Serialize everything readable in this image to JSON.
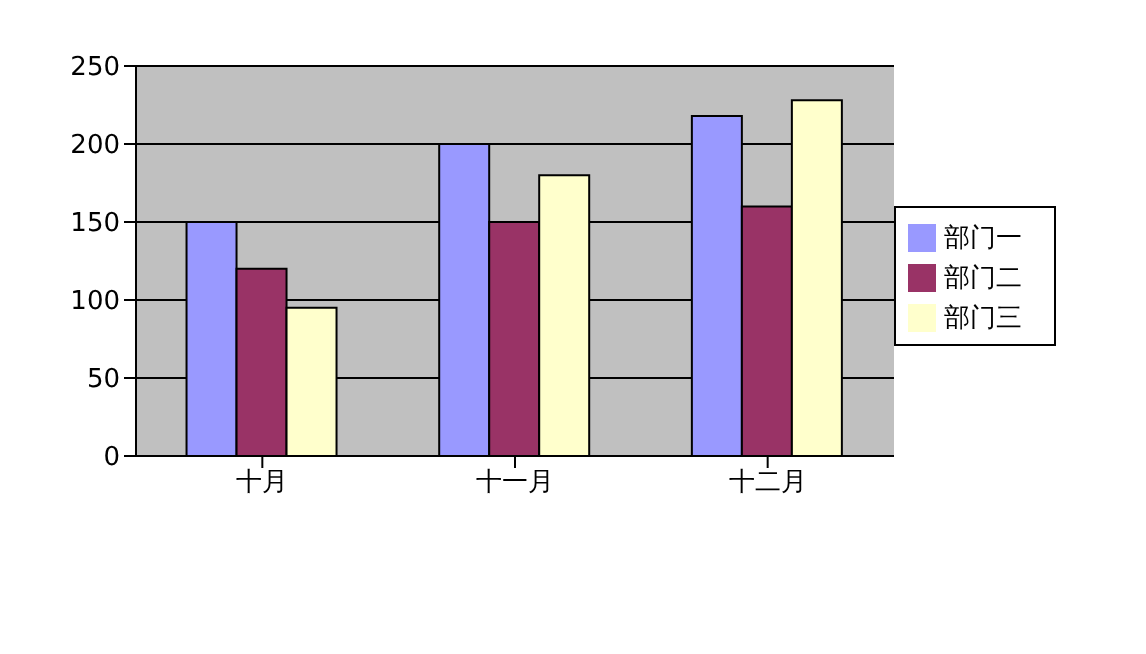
{
  "chart_data": {
    "type": "bar",
    "categories": [
      "十月",
      "十一月",
      "十二月"
    ],
    "series": [
      {
        "name": "部门一",
        "color": "#9999ff",
        "values": [
          150,
          200,
          218
        ]
      },
      {
        "name": "部门二",
        "color": "#993366",
        "values": [
          120,
          150,
          160
        ]
      },
      {
        "name": "部门三",
        "color": "#ffffcc",
        "values": [
          95,
          180,
          228
        ]
      }
    ],
    "ylim": [
      0,
      250
    ],
    "yticks": [
      0,
      50,
      100,
      150,
      200,
      250
    ],
    "grid": "y",
    "legend": "right"
  }
}
